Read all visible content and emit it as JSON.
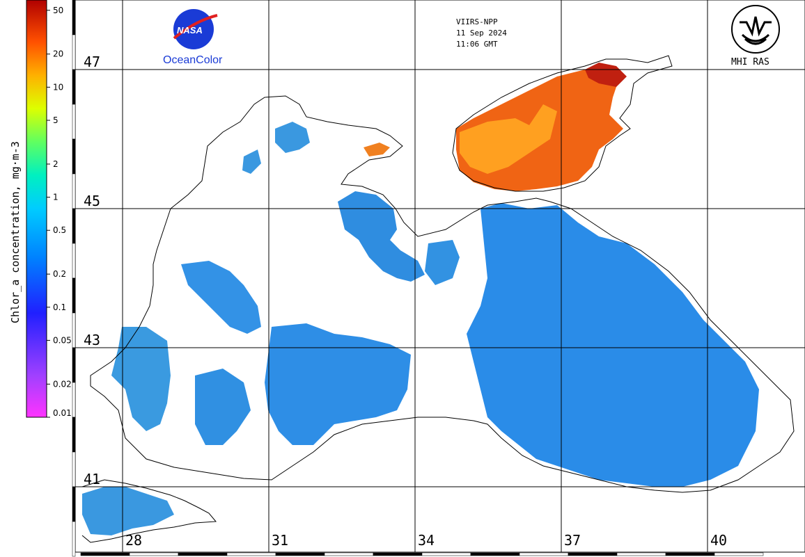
{
  "colorbar": {
    "title": "Chlor_a concentration, mg·m-3",
    "ticks": [
      {
        "label": "50",
        "value": 50
      },
      {
        "label": "20",
        "value": 20
      },
      {
        "label": "10",
        "value": 10
      },
      {
        "label": "5",
        "value": 5
      },
      {
        "label": "2",
        "value": 2
      },
      {
        "label": "1",
        "value": 1
      },
      {
        "label": "0.5",
        "value": 0.5
      },
      {
        "label": "0.2",
        "value": 0.2
      },
      {
        "label": "0.1",
        "value": 0.1
      },
      {
        "label": "0.05",
        "value": 0.05
      },
      {
        "label": "0.02",
        "value": 0.02
      },
      {
        "label": "0.01",
        "value": 0.01
      }
    ],
    "gradient_colors": [
      "#ff33ff",
      "#9933ff",
      "#3300ff",
      "#0066ff",
      "#00ccff",
      "#00ffcc",
      "#66ff66",
      "#ccff00",
      "#ffcc00",
      "#ff8800",
      "#ff2200",
      "#aa0000"
    ]
  },
  "satellite": {
    "line1": "VIIRS-NPP",
    "line2": "11 Sep 2024",
    "line3": "11:06 GMT"
  },
  "logos": {
    "nasa_label": "NASA",
    "ocean_color": "OceanColor",
    "mhi": "MHI RAS"
  },
  "grid": {
    "latitudes": [
      "47",
      "45",
      "43",
      "41"
    ],
    "longitudes": [
      "28",
      "31",
      "34",
      "37",
      "40"
    ]
  },
  "colors": {
    "land": "#ffffff",
    "coast": "#000000",
    "low_chl": "#2a8ce8",
    "high_chl": "#ff6a10"
  }
}
